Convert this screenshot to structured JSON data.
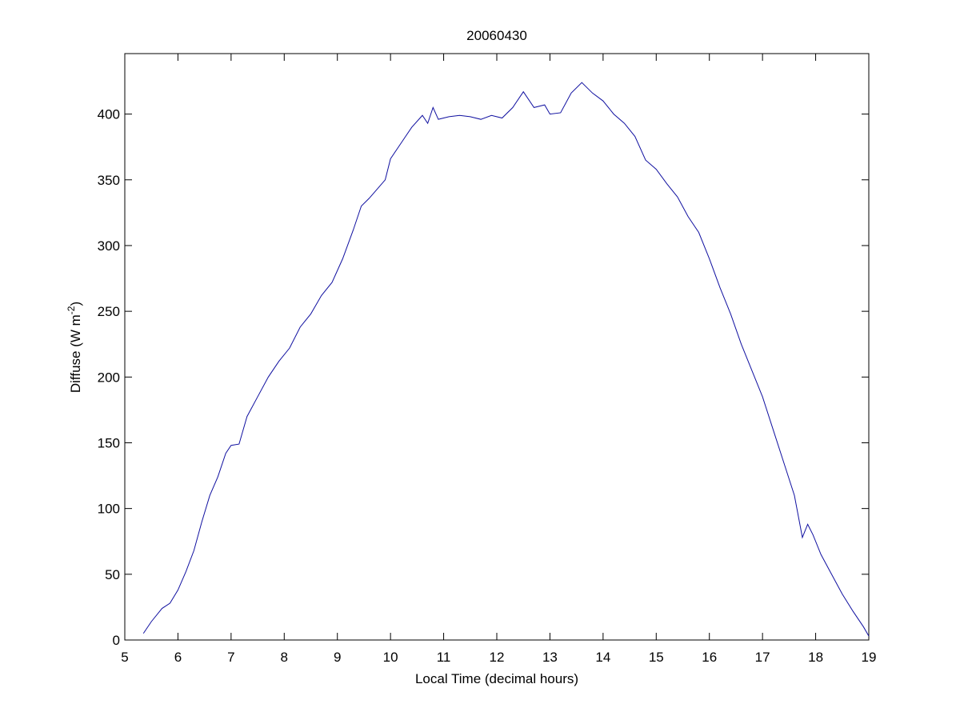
{
  "chart_data": {
    "type": "line",
    "title": "20060430",
    "xlabel": "Local Time (decimal hours)",
    "ylabel": {
      "text": "Diffuse (W m",
      "superscript": "-2",
      "suffix": ")"
    },
    "xlim": [
      5,
      19
    ],
    "ylim": [
      0,
      446
    ],
    "xticks": [
      5,
      6,
      7,
      8,
      9,
      10,
      11,
      12,
      13,
      14,
      15,
      16,
      17,
      18,
      19
    ],
    "yticks": [
      0,
      50,
      100,
      150,
      200,
      250,
      300,
      350,
      400
    ],
    "series": [
      {
        "color": "#1010a0",
        "x": [
          5.35,
          5.5,
          5.7,
          5.85,
          6.0,
          6.15,
          6.3,
          6.45,
          6.6,
          6.75,
          6.9,
          7.0,
          7.15,
          7.3,
          7.5,
          7.7,
          7.9,
          8.1,
          8.3,
          8.5,
          8.7,
          8.9,
          9.1,
          9.3,
          9.45,
          9.6,
          9.75,
          9.9,
          10.0,
          10.2,
          10.4,
          10.6,
          10.7,
          10.8,
          10.9,
          11.1,
          11.3,
          11.5,
          11.7,
          11.9,
          12.1,
          12.3,
          12.5,
          12.7,
          12.9,
          13.0,
          13.2,
          13.4,
          13.6,
          13.8,
          14.0,
          14.2,
          14.4,
          14.6,
          14.8,
          15.0,
          15.2,
          15.4,
          15.6,
          15.8,
          16.0,
          16.2,
          16.4,
          16.6,
          16.8,
          17.0,
          17.2,
          17.4,
          17.6,
          17.75,
          17.85,
          17.95,
          18.1,
          18.3,
          18.5,
          18.7,
          18.9,
          19.0
        ],
        "values": [
          5,
          14,
          24,
          28,
          38,
          52,
          68,
          90,
          110,
          124,
          142,
          148,
          149,
          170,
          185,
          200,
          212,
          222,
          238,
          248,
          262,
          272,
          290,
          312,
          330,
          336,
          343,
          350,
          366,
          378,
          390,
          399,
          393,
          405,
          396,
          398,
          399,
          398,
          396,
          399,
          397,
          405,
          417,
          405,
          407,
          400,
          401,
          416,
          424,
          416,
          410,
          400,
          393,
          383,
          365,
          358,
          347,
          337,
          322,
          310,
          290,
          268,
          248,
          225,
          205,
          185,
          160,
          135,
          110,
          78,
          88,
          80,
          65,
          50,
          35,
          22,
          10,
          3
        ]
      }
    ]
  }
}
